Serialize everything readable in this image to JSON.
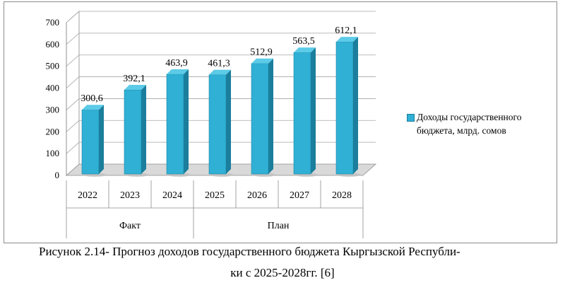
{
  "chart_data": {
    "type": "bar",
    "categories": [
      "2022",
      "2023",
      "2024",
      "2025",
      "2026",
      "2027",
      "2028"
    ],
    "values": [
      300.6,
      392.1,
      463.9,
      461.3,
      512.9,
      563.5,
      612.1
    ],
    "value_labels": [
      "300,6",
      "392,1",
      "463,9",
      "461,3",
      "512,9",
      "563,5",
      "612,1"
    ],
    "series": [
      {
        "name": "Доходы государственного бюджета, млрд. сомов",
        "values": [
          300.6,
          392.1,
          463.9,
          461.3,
          512.9,
          563.5,
          612.1
        ]
      }
    ],
    "groups": [
      {
        "label": "Факт",
        "categories": [
          "2022",
          "2023",
          "2024"
        ]
      },
      {
        "label": "План",
        "categories": [
          "2025",
          "2026",
          "2027",
          "2028"
        ]
      }
    ],
    "ylim": [
      0,
      700
    ],
    "yticks": [
      "0",
      "100",
      "200",
      "300",
      "400",
      "500",
      "600",
      "700"
    ],
    "grid": true,
    "legend_position": "right",
    "bar_color": "#2fb0d4",
    "three_d": true
  },
  "legend": {
    "line1": "Доходы государственного",
    "line2": "бюджета, млрд. сомов"
  },
  "caption": {
    "line1": "Рисунок 2.14- Прогноз доходов государственного бюджета Кыргызской Республи-",
    "line2": "ки с 2025-2028гг. [6]"
  }
}
